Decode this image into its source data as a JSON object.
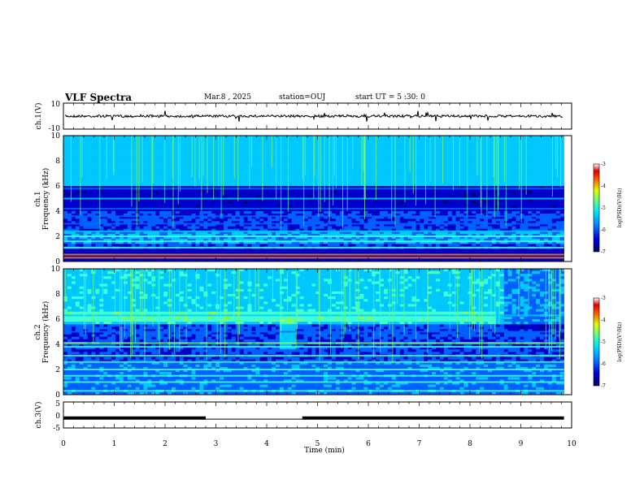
{
  "header": {
    "title": "VLF Spectra",
    "date": "Mar.8  , 2025",
    "station": "station=OUJ",
    "start": "start  UT =   5  :30: 0"
  },
  "colors": {
    "colormap": [
      "#000060",
      "#0000c8",
      "#0060ff",
      "#00c8ff",
      "#40ffd0",
      "#80ff60",
      "#f0ff00",
      "#ff8000",
      "#e00000",
      "#ffffff"
    ],
    "line": "#000000"
  },
  "chart_data": [
    {
      "type": "line",
      "id": "ch1",
      "ylabel": "ch.1(V)",
      "ylim": [
        -10,
        10
      ],
      "yticks": [
        "10",
        "-10"
      ],
      "x": [
        0,
        10
      ],
      "y_baseline": 0,
      "description_level": "noise around 0 V with sporadic spikes"
    },
    {
      "type": "heatmap",
      "id": "ch1-spectrogram",
      "ylabel_line1": "ch.1",
      "ylabel_line2": "Frequency  (kHz)",
      "xlim": [
        0,
        10
      ],
      "ylim": [
        0,
        10
      ],
      "yticks": [
        "0",
        "2",
        "4",
        "6",
        "8",
        "10"
      ],
      "colorbar": {
        "label": "log(PSD)(V²/Hz)",
        "ticks": [
          "-3",
          "-4",
          "-5",
          "-6",
          "-7"
        ],
        "range": [
          -7,
          -3
        ]
      },
      "bands": [
        {
          "f": 0.3,
          "level": 0.92
        },
        {
          "f": 0.55,
          "level": 0.88
        },
        {
          "f": 1.1,
          "level": 0.6
        },
        {
          "f": 1.6,
          "level": 0.55
        },
        {
          "f": 2.0,
          "level": 0.6
        },
        {
          "f": 2.4,
          "level": 0.45
        },
        {
          "f": 3.0,
          "level": 0.35
        },
        {
          "f": 3.6,
          "level": 0.3
        },
        {
          "f": 4.2,
          "level": 0.3
        },
        {
          "f": 5.0,
          "level": 0.4
        },
        {
          "f": 5.8,
          "level": 0.3
        }
      ]
    },
    {
      "type": "heatmap",
      "id": "ch2-spectrogram",
      "ylabel_line1": "ch.2",
      "ylabel_line2": "Frequency  (kHz)",
      "xlim": [
        0,
        10
      ],
      "ylim": [
        0,
        10
      ],
      "yticks": [
        "0",
        "2",
        "4",
        "6",
        "8",
        "10"
      ],
      "colorbar": {
        "label": "log(PSD)(V²/Hz)",
        "ticks": [
          "-3",
          "-4",
          "-5",
          "-6",
          "-7"
        ],
        "range": [
          -7,
          -3
        ]
      },
      "bands": [
        {
          "f": 0.3,
          "level": 0.5
        },
        {
          "f": 1.0,
          "level": 0.55
        },
        {
          "f": 1.5,
          "level": 0.5
        },
        {
          "f": 2.0,
          "level": 0.55
        },
        {
          "f": 2.6,
          "level": 0.5
        },
        {
          "f": 3.1,
          "level": 0.6
        },
        {
          "f": 3.8,
          "level": 0.55
        },
        {
          "f": 4.1,
          "level": 0.65
        },
        {
          "f": 5.0,
          "level": 0.35
        },
        {
          "f": 6.3,
          "level": 0.45
        }
      ]
    },
    {
      "type": "line",
      "id": "ch3",
      "ylabel": "ch.3(V)",
      "ylim": [
        -5,
        5
      ],
      "yticks": [
        "5",
        "0",
        "-5"
      ],
      "segments": [
        {
          "x0": 0,
          "x1": 2.8,
          "y": -1.2
        },
        {
          "x0": 2.8,
          "x1": 4.7,
          "y": -1.6
        },
        {
          "x0": 4.7,
          "x1": 9.85,
          "y": -1.2
        }
      ]
    }
  ],
  "xaxis": {
    "label": "Time  (min)",
    "xlim": [
      0,
      10
    ],
    "ticks": [
      "0",
      "1",
      "2",
      "3",
      "4",
      "5",
      "6",
      "7",
      "8",
      "9",
      "10"
    ]
  }
}
